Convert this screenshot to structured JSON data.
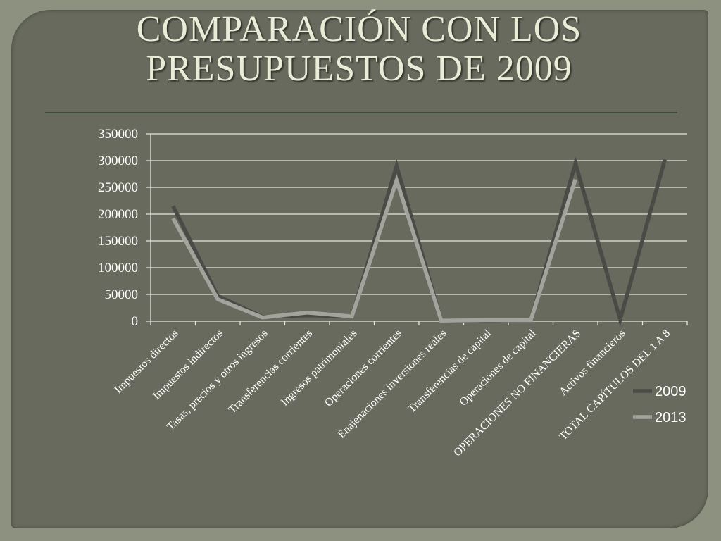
{
  "page": {
    "title_lines": [
      "COMPARACIÓN CON LOS",
      "PRESUPUESTOS DE 2009"
    ]
  },
  "colors": {
    "background": "#676a5c",
    "series_2009": "#4a4b46",
    "series_2013": "#a3a39d",
    "grid": "#e6e6e0"
  },
  "chart_data": {
    "type": "line",
    "categories": [
      "Impuestos directos",
      "Impuestos indirectos",
      "Tasas, precios y otros ingresos",
      "Transferencias corrientes",
      "Ingresos patrimoniales",
      "Operaciones corrientes",
      "Enajenaciones inversiones reales",
      "Transferencias de capital",
      "Operaciones de capital",
      "OPERACIONES NO FINANCIERAS",
      "Activos financieros",
      "TOTAL CAPÍTULOS DEL 1 A 8"
    ],
    "series": [
      {
        "name": "2009",
        "values": [
          215000,
          47000,
          8000,
          11000,
          9000,
          290000,
          1000,
          1000,
          2000,
          295000,
          3000,
          302000
        ]
      },
      {
        "name": "2013",
        "values": [
          192000,
          41000,
          7000,
          16000,
          9000,
          263000,
          1000,
          2000,
          2000,
          265000,
          null,
          null
        ]
      }
    ],
    "ylim": [
      0,
      350000
    ],
    "yticks": [
      0,
      50000,
      100000,
      150000,
      200000,
      250000,
      300000,
      350000
    ],
    "grid": true,
    "legend_position": "right"
  }
}
